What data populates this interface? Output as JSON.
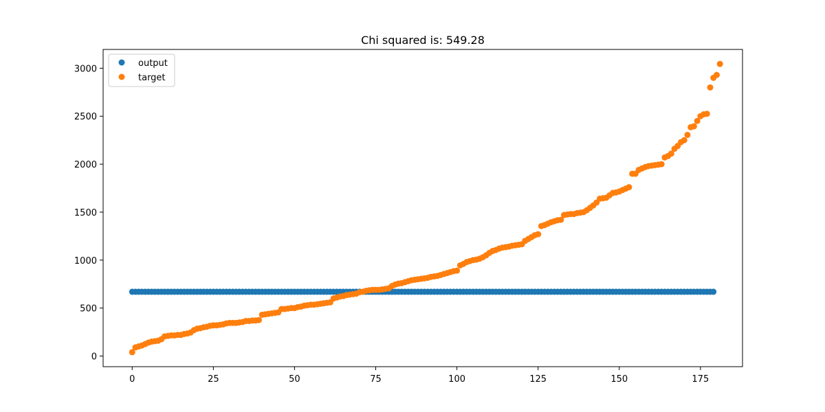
{
  "chart_data": {
    "type": "scatter",
    "title": "Chi squared is: 549.28",
    "xlabel": "",
    "ylabel": "",
    "xlim": [
      -8.95,
      187.95
    ],
    "ylim": [
      -111,
      3196
    ],
    "xticks": [
      0,
      25,
      50,
      75,
      100,
      125,
      150,
      175
    ],
    "yticks": [
      0,
      500,
      1000,
      1500,
      2000,
      2500,
      3000
    ],
    "legend": {
      "placement": "top-left",
      "entries": [
        "output",
        "target"
      ]
    },
    "grid": false,
    "series": [
      {
        "name": "output",
        "color": "#1f77b4",
        "constant_value": 670,
        "x_start": 0,
        "x_end": 179
      },
      {
        "name": "target",
        "color": "#ff7f0e",
        "values": [
          40,
          90,
          100,
          110,
          125,
          140,
          150,
          155,
          160,
          175,
          205,
          210,
          215,
          215,
          220,
          220,
          230,
          235,
          245,
          270,
          285,
          290,
          300,
          305,
          315,
          320,
          320,
          325,
          330,
          340,
          345,
          345,
          345,
          350,
          355,
          365,
          365,
          370,
          370,
          375,
          430,
          435,
          440,
          445,
          450,
          455,
          490,
          490,
          495,
          500,
          500,
          510,
          515,
          525,
          530,
          535,
          535,
          540,
          545,
          550,
          555,
          560,
          600,
          610,
          620,
          625,
          635,
          640,
          645,
          650,
          665,
          670,
          680,
          685,
          690,
          690,
          690,
          695,
          700,
          705,
          730,
          745,
          755,
          760,
          770,
          780,
          790,
          795,
          800,
          805,
          810,
          815,
          825,
          830,
          835,
          845,
          855,
          865,
          875,
          885,
          890,
          945,
          960,
          980,
          990,
          1000,
          1005,
          1015,
          1030,
          1050,
          1075,
          1095,
          1105,
          1120,
          1130,
          1135,
          1140,
          1150,
          1155,
          1160,
          1165,
          1200,
          1220,
          1240,
          1260,
          1270,
          1355,
          1365,
          1380,
          1395,
          1405,
          1415,
          1420,
          1470,
          1475,
          1480,
          1480,
          1490,
          1495,
          1500,
          1520,
          1545,
          1570,
          1600,
          1640,
          1645,
          1650,
          1675,
          1700,
          1705,
          1715,
          1730,
          1745,
          1760,
          1900,
          1900,
          1940,
          1955,
          1970,
          1980,
          1985,
          1990,
          1995,
          2000,
          2070,
          2085,
          2110,
          2160,
          2190,
          2230,
          2250,
          2305,
          2385,
          2395,
          2450,
          2500,
          2520,
          2525,
          2800,
          2900,
          2930,
          3045
        ]
      }
    ]
  }
}
